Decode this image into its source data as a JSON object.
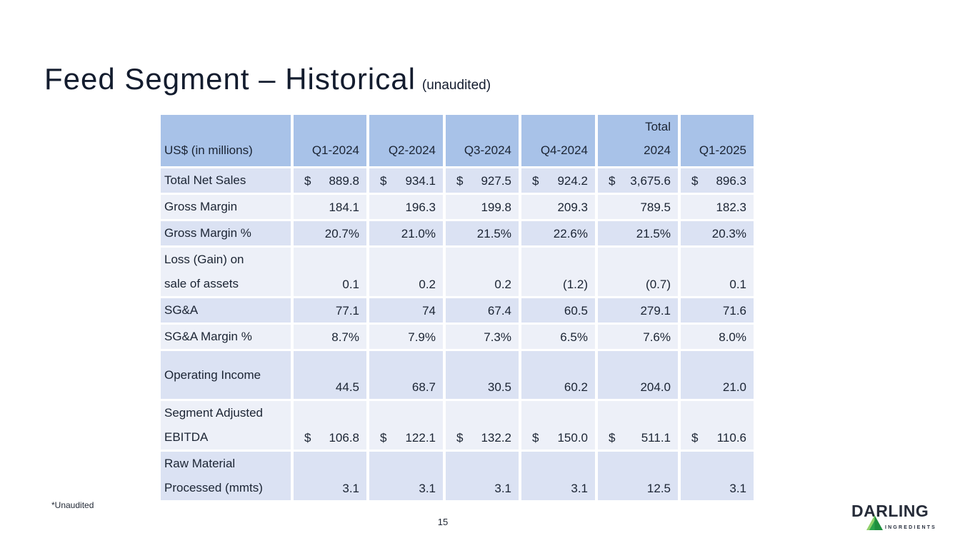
{
  "slide": {
    "title": "Feed Segment – Historical",
    "title_suffix": "(unaudited)",
    "footnote": "*Unaudited",
    "page_number": "15"
  },
  "logo": {
    "wordmark": "DARLING",
    "subtext": "INGREDIENTS",
    "triangle_icon": "green-pyramid-triangle",
    "green_light": "#8fd06a",
    "green_dark": "#1e8f3e"
  },
  "colors": {
    "header_bg": "#a8c2e8",
    "row_blue_bg": "#dbe2f3",
    "row_light_bg": "#edf0f8",
    "text": "#1b2433",
    "title_text": "#131c2e",
    "slide_bg": "#ffffff"
  },
  "table": {
    "currency_symbol": "$",
    "header": {
      "label": "US$ (in millions)",
      "columns": [
        "Q1-2024",
        "Q2-2024",
        "Q3-2024",
        "Q4-2024",
        "Total\n2024",
        "Q1-2025"
      ]
    },
    "rows": [
      {
        "label": "Total Net Sales",
        "currency": true,
        "shade": "blue",
        "tall": false,
        "values": [
          "889.8",
          "934.1",
          "927.5",
          "924.2",
          "3,675.6",
          "896.3"
        ]
      },
      {
        "label": "Gross Margin",
        "currency": false,
        "shade": "light",
        "tall": false,
        "values": [
          "184.1",
          "196.3",
          "199.8",
          "209.3",
          "789.5",
          "182.3"
        ]
      },
      {
        "label": "Gross Margin %",
        "currency": false,
        "shade": "blue",
        "tall": false,
        "values": [
          "20.7%",
          "21.0%",
          "21.5%",
          "22.6%",
          "21.5%",
          "20.3%"
        ]
      },
      {
        "label": "Loss (Gain) on\nsale of assets",
        "currency": false,
        "shade": "light",
        "tall": true,
        "values": [
          "0.1",
          "0.2",
          "0.2",
          "(1.2)",
          "(0.7)",
          "0.1"
        ]
      },
      {
        "label": "SG&A",
        "currency": false,
        "shade": "blue",
        "tall": false,
        "values": [
          "77.1",
          "74",
          "67.4",
          "60.5",
          "279.1",
          "71.6"
        ]
      },
      {
        "label": "SG&A Margin %",
        "currency": false,
        "shade": "light",
        "tall": false,
        "values": [
          "8.7%",
          "7.9%",
          "7.3%",
          "6.5%",
          "7.6%",
          "8.0%"
        ]
      },
      {
        "label": "Operating Income",
        "currency": false,
        "shade": "blue",
        "tall": true,
        "values": [
          "44.5",
          "68.7",
          "30.5",
          "60.2",
          "204.0",
          "21.0"
        ]
      },
      {
        "label": "Segment Adjusted\nEBITDA",
        "currency": true,
        "shade": "light",
        "tall": true,
        "values": [
          "106.8",
          "122.1",
          "132.2",
          "150.0",
          "511.1",
          "110.6"
        ]
      },
      {
        "label": "Raw Material\nProcessed (mmts)",
        "currency": false,
        "shade": "blue",
        "tall": true,
        "values": [
          "3.1",
          "3.1",
          "3.1",
          "3.1",
          "12.5",
          "3.1"
        ]
      }
    ]
  }
}
